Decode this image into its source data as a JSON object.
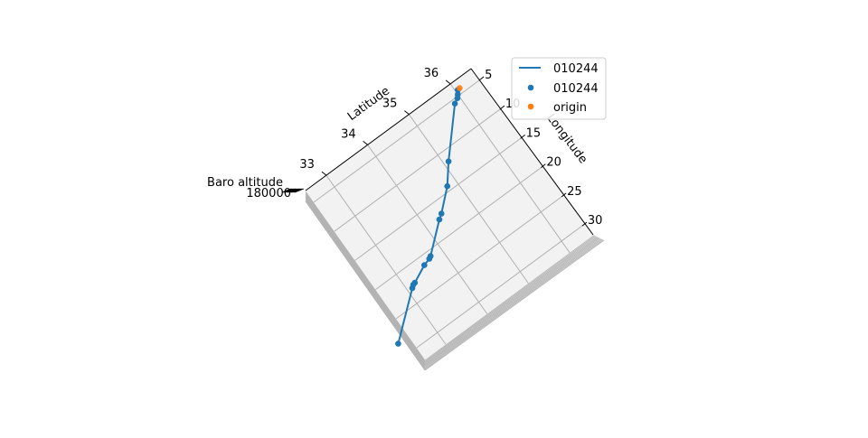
{
  "chart_data": {
    "type": "scatter",
    "projection": "3d",
    "axes": {
      "x": {
        "label": "Latitude",
        "ticks": [
          33,
          34,
          35,
          36
        ],
        "range": [
          32.5,
          36.5
        ]
      },
      "y": {
        "label": "Longitude",
        "ticks": [
          5,
          10,
          15,
          20,
          25,
          30
        ],
        "range": [
          3,
          32
        ]
      },
      "z": {
        "label": "Baro altitude",
        "tick_text": "180000"
      }
    },
    "grid": true,
    "legend": {
      "placement": "top-right",
      "entries": [
        {
          "label": "010244",
          "kind": "line",
          "color": "#1f77b4"
        },
        {
          "label": "010244",
          "kind": "marker",
          "color": "#1f77b4"
        },
        {
          "label": "origin",
          "kind": "marker",
          "color": "#ff7f0e"
        }
      ]
    },
    "series": [
      {
        "name": "010244",
        "color": "#1f77b4",
        "points": [
          {
            "lat": 36.05,
            "lon": 4.3
          },
          {
            "lat": 36.0,
            "lon": 4.8
          },
          {
            "lat": 35.95,
            "lon": 5.2
          },
          {
            "lat": 35.85,
            "lon": 5.6
          },
          {
            "lat": 35.1,
            "lon": 11.6
          },
          {
            "lat": 34.8,
            "lon": 14.3
          },
          {
            "lat": 34.4,
            "lon": 16.9
          },
          {
            "lat": 34.3,
            "lon": 17.4
          },
          {
            "lat": 33.75,
            "lon": 20.8
          },
          {
            "lat": 33.7,
            "lon": 21.0
          },
          {
            "lat": 33.55,
            "lon": 21.3
          },
          {
            "lat": 33.2,
            "lon": 22.5
          },
          {
            "lat": 33.15,
            "lon": 22.6
          },
          {
            "lat": 33.1,
            "lon": 22.9
          },
          {
            "lat": 32.25,
            "lon": 28.0
          }
        ]
      }
    ],
    "origin": {
      "name": "origin",
      "color": "#ff7f0e",
      "lat": 36.1,
      "lon": 4.25
    }
  }
}
